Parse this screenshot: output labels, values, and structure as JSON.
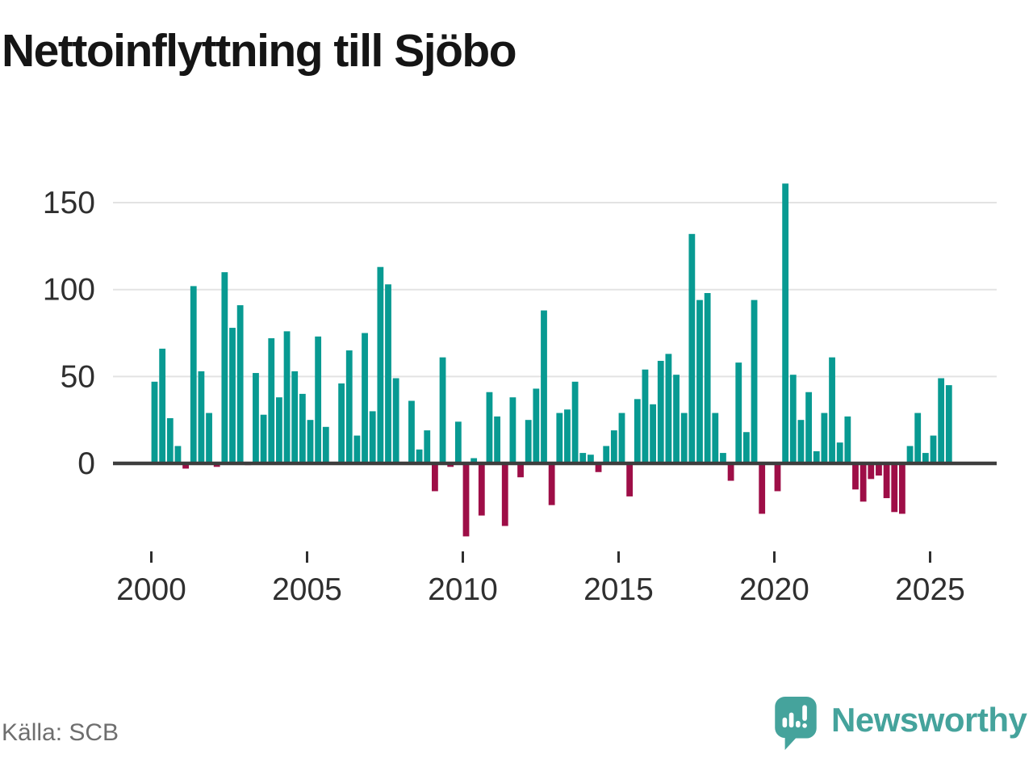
{
  "header": {
    "title": "Nettoinflyttning till Sjöbo"
  },
  "footer": {
    "source_label": "Källa: SCB",
    "brand_name": "Newsworthy",
    "brand_color": "#45a39c"
  },
  "chart_data": {
    "type": "bar",
    "title": "Nettoinflyttning till Sjöbo",
    "frequency": "quarterly",
    "start_period": "2000 Q1",
    "end_period": "2025 Q3",
    "values": [
      47,
      66,
      26,
      10,
      -3,
      102,
      53,
      29,
      -2,
      110,
      78,
      91,
      -1,
      52,
      28,
      72,
      38,
      76,
      53,
      40,
      25,
      73,
      21,
      0,
      46,
      65,
      16,
      75,
      30,
      113,
      103,
      49,
      0,
      36,
      8,
      19,
      -16,
      61,
      -2,
      24,
      -42,
      3,
      -30,
      41,
      27,
      -36,
      38,
      -8,
      25,
      43,
      88,
      -24,
      29,
      31,
      47,
      6,
      5,
      -5,
      10,
      19,
      29,
      -19,
      37,
      54,
      34,
      59,
      63,
      51,
      29,
      132,
      94,
      98,
      29,
      6,
      -10,
      58,
      18,
      94,
      -29,
      0,
      -16,
      161,
      51,
      25,
      41,
      7,
      29,
      61,
      12,
      27,
      -15,
      -22,
      -9,
      -7,
      -20,
      -28,
      -29,
      10,
      29,
      6,
      16,
      49,
      45
    ],
    "x_ticks": [
      "2000",
      "2005",
      "2010",
      "2015",
      "2020",
      "2025"
    ],
    "x_tick_quarter_interval": 20,
    "y_ticks": [
      0,
      50,
      100,
      150
    ],
    "ylim": [
      -50,
      170
    ],
    "grid": "horizontal",
    "legend": "none",
    "positive_color": "#089a92",
    "negative_color": "#9e0e47",
    "gridline_color": "#e3e3e3",
    "axis_line_color": "#3d3d3d",
    "tick_label_color": "#2f2f2f"
  }
}
